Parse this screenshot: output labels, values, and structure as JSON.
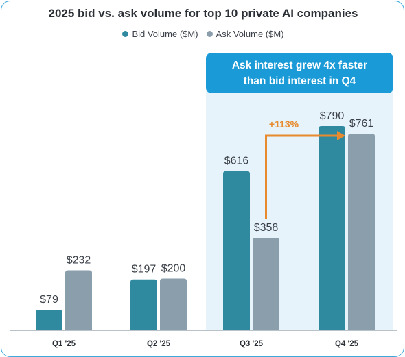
{
  "chart_data": {
    "type": "bar",
    "title": "2025 bid vs. ask volume for top 10 private AI companies",
    "categories": [
      "Q1 '25",
      "Q2 '25",
      "Q3 '25",
      "Q4 '25"
    ],
    "series": [
      {
        "name": "Bid Volume ($M)",
        "color": "#2f8aa0",
        "values": [
          79,
          197,
          616,
          790
        ],
        "labels": [
          "$79",
          "$197",
          "$616",
          "$790"
        ]
      },
      {
        "name": "Ask Volume ($M)",
        "color": "#8a9eab",
        "values": [
          232,
          200,
          358,
          761
        ],
        "labels": [
          "$232",
          "$200",
          "$358",
          "$761"
        ]
      }
    ],
    "legend_position": "top-center",
    "grid": false,
    "highlight": {
      "categories": [
        "Q3 '25",
        "Q4 '25"
      ],
      "background_color": "#e6f3fa",
      "callout": "Ask interest grew 4x faster than bid interest in Q4"
    },
    "annotation": {
      "text": "+113%",
      "color": "#e88a2e"
    }
  }
}
